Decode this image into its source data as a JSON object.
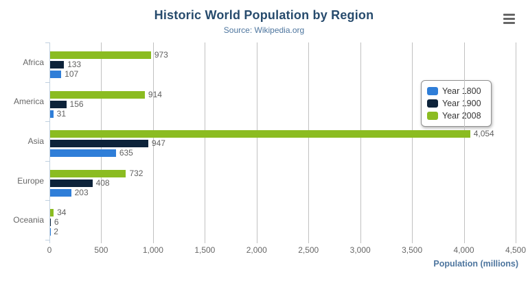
{
  "header": {
    "title": "Historic World Population by Region",
    "subtitle": "Source: Wikipedia.org"
  },
  "menu": {
    "icon": "hamburger-menu-icon"
  },
  "colors": {
    "title": "#274b6d",
    "subtitle": "#4d759e",
    "axis_title": "#4d759e",
    "axis_labels": "#666666",
    "category_labels": "#666666",
    "gridline": "#c0c0c0",
    "axis_line": "#c0d0e0",
    "data_label": "#606060",
    "legend_border": "#909090",
    "legend_text": "#333333",
    "menu_icon": "#666666"
  },
  "chart_data": {
    "type": "bar",
    "orientation": "horizontal",
    "title": "Historic World Population by Region",
    "subtitle": "Source: Wikipedia.org",
    "categories": [
      "Africa",
      "America",
      "Asia",
      "Europe",
      "Oceania"
    ],
    "series": [
      {
        "name": "Year 1800",
        "color": "#2f7ed8",
        "values": [
          107,
          31,
          635,
          203,
          2
        ]
      },
      {
        "name": "Year 1900",
        "color": "#0d233a",
        "values": [
          133,
          156,
          947,
          408,
          6
        ]
      },
      {
        "name": "Year 2008",
        "color": "#8bbc21",
        "values": [
          973,
          914,
          4054,
          732,
          34
        ]
      }
    ],
    "bar_order_top_to_bottom": [
      "Year 2008",
      "Year 1900",
      "Year 1800"
    ],
    "xlabel": "Population (millions)",
    "ylabel": "",
    "xlim": [
      0,
      4500
    ],
    "xticks": [
      0,
      500,
      1000,
      1500,
      2000,
      2500,
      3000,
      3500,
      4000,
      4500
    ],
    "grid": true,
    "data_labels": true,
    "legend_position": "right"
  }
}
